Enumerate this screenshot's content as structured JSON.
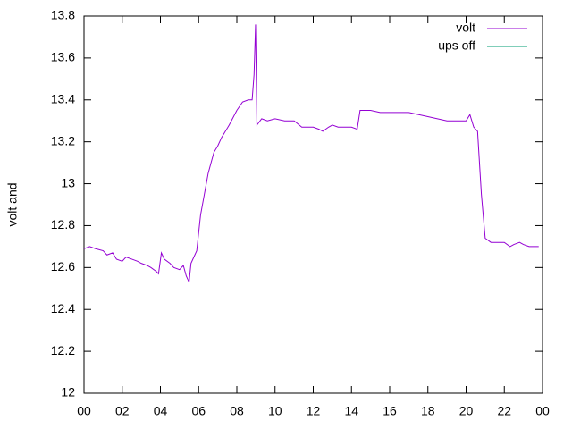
{
  "chart_data": {
    "type": "line",
    "ylabel": "volt and",
    "x": [
      0,
      0.3,
      0.6,
      1,
      1.2,
      1.5,
      1.7,
      2,
      2.2,
      2.5,
      2.8,
      3,
      3.3,
      3.5,
      3.8,
      3.9,
      4.05,
      4.2,
      4.5,
      4.7,
      5,
      5.2,
      5.35,
      5.5,
      5.6,
      5.75,
      5.9,
      6.1,
      6.3,
      6.5,
      6.8,
      7,
      7.2,
      7.6,
      8,
      8.3,
      8.6,
      8.8,
      8.9,
      8.98,
      9.05,
      9.3,
      9.6,
      10,
      10.5,
      11,
      11.4,
      12,
      12.3,
      12.5,
      12.8,
      13,
      13.3,
      13.5,
      14,
      14.3,
      14.45,
      15,
      15.5,
      16,
      17,
      18,
      19,
      20,
      20.2,
      20.4,
      20.6,
      20.8,
      21,
      21.3,
      21.5,
      22,
      22.3,
      22.5,
      22.8,
      23,
      23.3,
      23.5,
      23.8
    ],
    "series": [
      {
        "name": "volt",
        "color": "#9400d3",
        "values": [
          12.69,
          12.7,
          12.69,
          12.68,
          12.66,
          12.67,
          12.64,
          12.63,
          12.65,
          12.64,
          12.63,
          12.62,
          12.61,
          12.6,
          12.58,
          12.57,
          12.67,
          12.64,
          12.62,
          12.6,
          12.59,
          12.61,
          12.56,
          12.53,
          12.62,
          12.65,
          12.68,
          12.85,
          12.95,
          13.05,
          13.15,
          13.18,
          13.22,
          13.28,
          13.35,
          13.39,
          13.4,
          13.4,
          13.52,
          13.76,
          13.28,
          13.31,
          13.3,
          13.31,
          13.3,
          13.3,
          13.27,
          13.27,
          13.26,
          13.25,
          13.27,
          13.28,
          13.27,
          13.27,
          13.27,
          13.26,
          13.35,
          13.35,
          13.34,
          13.34,
          13.34,
          13.32,
          13.3,
          13.3,
          13.33,
          13.27,
          13.25,
          12.95,
          12.74,
          12.72,
          12.72,
          12.72,
          12.7,
          12.71,
          12.72,
          12.71,
          12.7,
          12.7,
          12.7
        ]
      },
      {
        "name": "ups off",
        "color": "#009e73",
        "values": [
          null,
          null,
          null,
          null,
          null,
          null,
          null,
          null,
          null,
          null,
          null,
          null,
          null,
          null,
          null,
          null,
          null,
          null,
          null,
          null,
          null,
          null,
          null,
          null,
          null,
          null,
          null,
          null,
          null,
          null,
          null,
          null,
          null,
          null,
          null,
          null,
          null,
          null,
          null,
          null,
          null,
          null,
          null,
          null,
          null,
          null,
          null,
          null,
          null,
          null,
          null,
          null,
          null,
          null,
          null,
          null,
          null,
          null,
          null,
          null,
          null,
          null,
          null,
          null,
          null,
          null,
          null,
          null,
          null,
          null,
          null,
          null,
          null,
          null,
          null,
          null,
          null,
          null,
          null
        ]
      }
    ],
    "xlim": [
      0,
      24
    ],
    "xticks": [
      {
        "value": 0,
        "label": "00"
      },
      {
        "value": 2,
        "label": "02"
      },
      {
        "value": 4,
        "label": "04"
      },
      {
        "value": 6,
        "label": "06"
      },
      {
        "value": 8,
        "label": "08"
      },
      10,
      12,
      14,
      16,
      18,
      20,
      22,
      {
        "value": 24,
        "label": "00"
      }
    ],
    "ylim": [
      12,
      13.8
    ],
    "yticks": [
      12,
      12.2,
      12.4,
      12.6,
      12.8,
      13,
      13.2,
      13.4,
      13.6,
      13.8
    ],
    "grid": false,
    "legend": "top-right"
  }
}
